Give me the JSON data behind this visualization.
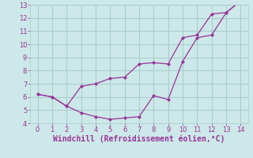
{
  "line1_x": [
    0,
    1,
    2,
    3,
    4,
    5,
    6,
    7,
    8,
    9,
    10,
    11,
    12,
    13,
    14
  ],
  "line1_y": [
    6.2,
    6.0,
    5.3,
    6.8,
    7.0,
    7.4,
    7.5,
    8.5,
    8.6,
    8.5,
    10.5,
    10.7,
    12.3,
    12.4,
    13.3
  ],
  "line2_x": [
    0,
    1,
    2,
    3,
    4,
    5,
    6,
    7,
    8,
    9,
    10,
    11,
    12,
    13,
    14
  ],
  "line2_y": [
    6.2,
    6.0,
    5.3,
    4.8,
    4.5,
    4.3,
    4.4,
    4.5,
    6.1,
    5.8,
    8.7,
    10.5,
    10.7,
    12.4,
    13.3
  ],
  "line_color": "#993399",
  "bg_color": "#cce8e8",
  "grid_color": "#aacece",
  "xlabel": "Windchill (Refroidissement éolien,°C)",
  "xlabel_color": "#993399",
  "xlim": [
    -0.5,
    14.5
  ],
  "ylim": [
    4,
    13
  ],
  "xticks": [
    0,
    1,
    2,
    3,
    4,
    5,
    6,
    7,
    8,
    9,
    10,
    11,
    12,
    13,
    14
  ],
  "yticks": [
    4,
    5,
    6,
    7,
    8,
    9,
    10,
    11,
    12,
    13
  ],
  "tick_color": "#993399",
  "tick_fontsize": 6,
  "xlabel_fontsize": 7,
  "marker": "D",
  "markersize": 2.0
}
